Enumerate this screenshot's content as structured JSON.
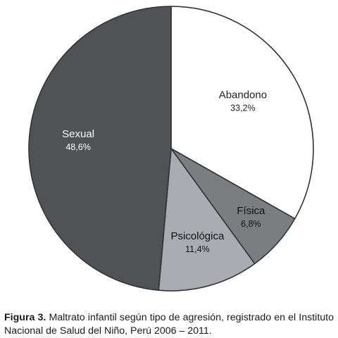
{
  "chart_data": {
    "type": "pie",
    "slices": [
      {
        "label": "Abandono",
        "value_label": "33,2%",
        "value": 33.2,
        "color": "#ffffff",
        "text_color": "#222222"
      },
      {
        "label": "Física",
        "value_label": "6,8%",
        "value": 6.8,
        "color": "#7b7d80",
        "text_color": "#111111"
      },
      {
        "label": "Psicológica",
        "value_label": "11,4%",
        "value": 11.4,
        "color": "#a9acb0",
        "text_color": "#111111"
      },
      {
        "label": "Sexual",
        "value_label": "48,6%",
        "value": 48.6,
        "color": "#505256",
        "text_color": "#ffffff"
      }
    ],
    "start": "12 o'clock",
    "direction": "clockwise",
    "edge_color": "#333333"
  },
  "caption": {
    "label": "Figura 3.",
    "text": "Maltrato infantil según tipo de agresión, registrado en el Instituto Nacional de Salud del Niño, Perú 2006 – 2011."
  }
}
